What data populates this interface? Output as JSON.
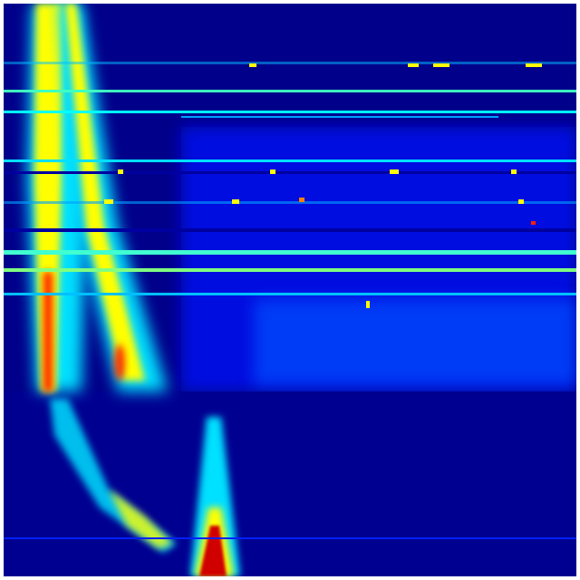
{
  "image": {
    "kind": "intensity-heatmap",
    "colormap": "jet",
    "colors": {
      "background": "#00008a",
      "low": "#0000cc",
      "mid_low": "#0040ff",
      "mid": "#00e0ff",
      "mid_high": "#ffff00",
      "high": "#ff2000",
      "peak": "#a00000",
      "frame": "#ffffff"
    }
  }
}
